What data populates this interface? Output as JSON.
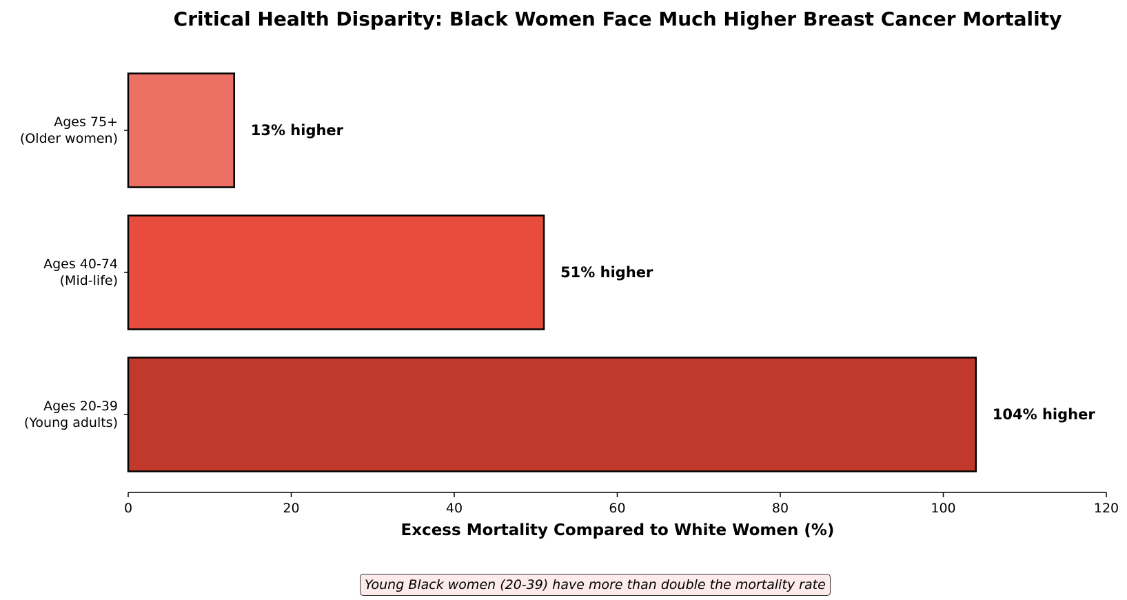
{
  "chart_data": {
    "type": "bar",
    "orientation": "horizontal",
    "title": "Critical Health Disparity: Black Women Face Much Higher Breast Cancer Mortality",
    "xlabel": "Excess Mortality Compared to White Women (%)",
    "ylabel": "",
    "xlim": [
      0,
      120
    ],
    "xticks": [
      0,
      20,
      40,
      60,
      80,
      100,
      120
    ],
    "grid": false,
    "categories": [
      [
        "Ages 20-39",
        "(Young adults)"
      ],
      [
        "Ages 40-74",
        "(Mid-life)"
      ],
      [
        "Ages 75+",
        "(Older women)"
      ]
    ],
    "values": [
      104,
      51,
      13
    ],
    "data_labels": [
      "104% higher",
      "51% higher",
      "13% higher"
    ],
    "colors": [
      "#c0392b",
      "#e74c3c",
      "#ec7063"
    ],
    "annotation": "Young Black women (20-39) have more than double the mortality rate"
  }
}
